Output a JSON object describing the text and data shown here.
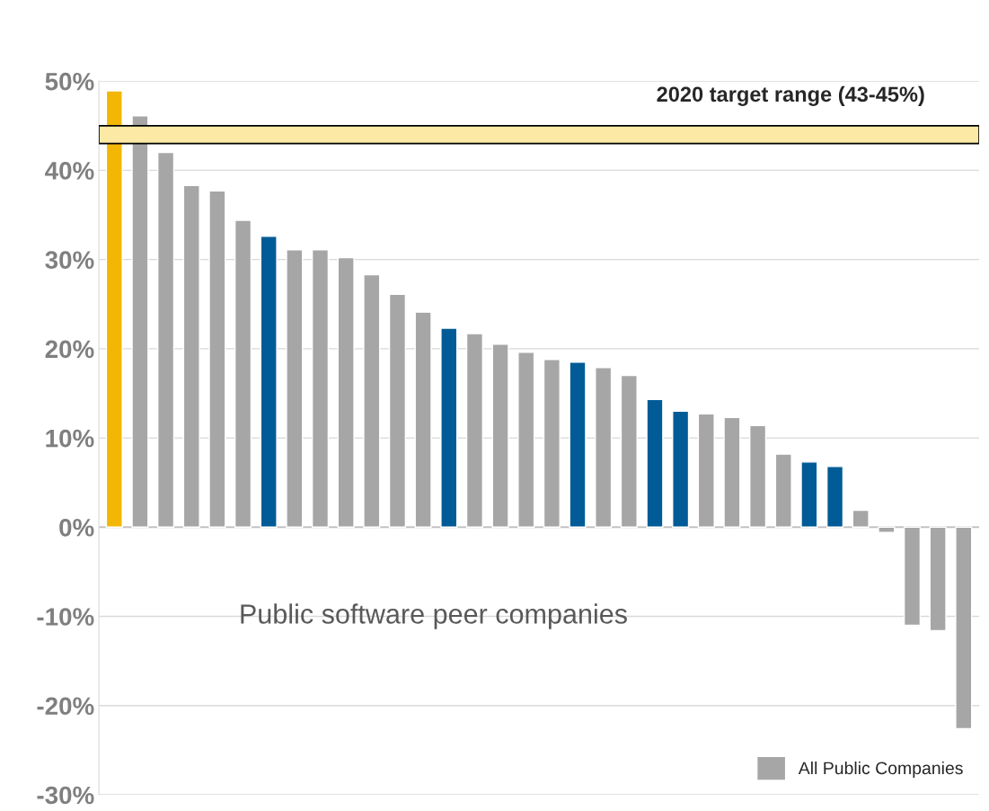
{
  "chart_data": {
    "type": "bar",
    "categories": [
      null,
      null,
      null,
      null,
      null,
      null,
      null,
      null,
      null,
      null,
      null,
      null,
      null,
      null,
      null,
      null,
      null,
      null,
      null,
      null,
      null,
      null,
      null,
      null,
      null,
      null,
      null,
      null,
      null,
      null,
      null,
      null,
      null,
      null
    ],
    "series": [
      {
        "name": "All Public Companies",
        "color": "#a6a6a6",
        "values": [
          48.9,
          46.1,
          42.0,
          38.3,
          37.7,
          34.4,
          32.6,
          31.1,
          31.1,
          30.2,
          28.3,
          26.1,
          24.1,
          22.3,
          21.7,
          20.5,
          19.6,
          18.8,
          18.5,
          17.9,
          17.0,
          14.3,
          13.0,
          12.7,
          12.3,
          11.4,
          8.2,
          7.3,
          6.8,
          1.9,
          -0.6,
          -11.0,
          -11.6,
          -22.6
        ],
        "colors": [
          "#f2b705",
          "#a6a6a6",
          "#a6a6a6",
          "#a6a6a6",
          "#a6a6a6",
          "#a6a6a6",
          "#005b96",
          "#a6a6a6",
          "#a6a6a6",
          "#a6a6a6",
          "#a6a6a6",
          "#a6a6a6",
          "#a6a6a6",
          "#005b96",
          "#a6a6a6",
          "#a6a6a6",
          "#a6a6a6",
          "#a6a6a6",
          "#005b96",
          "#a6a6a6",
          "#a6a6a6",
          "#005b96",
          "#005b96",
          "#a6a6a6",
          "#a6a6a6",
          "#a6a6a6",
          "#a6a6a6",
          "#005b96",
          "#005b96",
          "#a6a6a6",
          "#a6a6a6",
          "#a6a6a6",
          "#a6a6a6",
          "#a6a6a6"
        ]
      }
    ],
    "ylim": [
      -30,
      50
    ],
    "yticks": [
      {
        "value": -30,
        "label": "-30%"
      },
      {
        "value": -20,
        "label": "-20%"
      },
      {
        "value": -10,
        "label": "-10%"
      },
      {
        "value": 0,
        "label": "0%"
      },
      {
        "value": 10,
        "label": "10%"
      },
      {
        "value": 20,
        "label": "20%"
      },
      {
        "value": 30,
        "label": "30%"
      },
      {
        "value": 40,
        "label": "40%"
      },
      {
        "value": 50,
        "label": "50%"
      }
    ],
    "grid": "y",
    "tick_labels": "y",
    "legend": "bottom right",
    "bands": [
      {
        "axis": "y",
        "from": 43,
        "to": 45,
        "label": "2020 target range (43-45%)",
        "color": "#fde9a6"
      }
    ],
    "annotations": [
      "Public software peer companies"
    ]
  }
}
